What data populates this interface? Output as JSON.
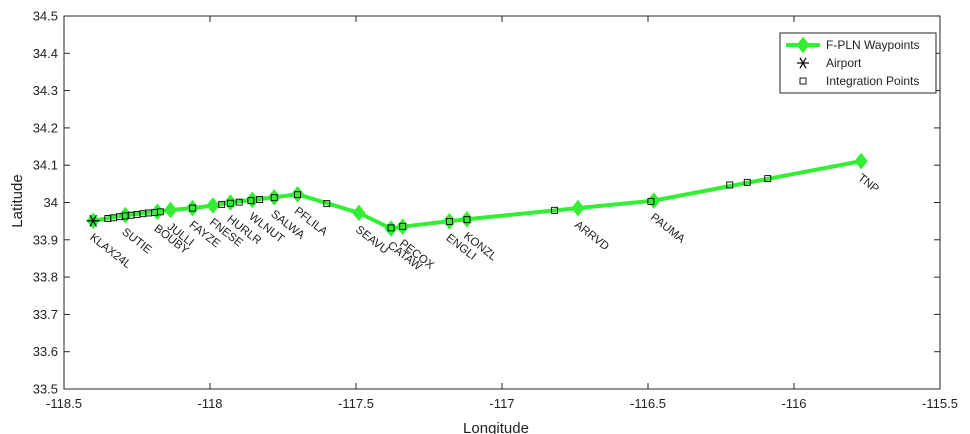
{
  "chart_data": {
    "type": "line",
    "xlabel": "Longitude",
    "ylabel": "Latitude",
    "xlim": [
      -118.5,
      -115.5
    ],
    "ylim": [
      33.5,
      34.5
    ],
    "xticks": [
      -118.5,
      -118,
      -117.5,
      -117,
      -116.5,
      -116,
      -115.5
    ],
    "xtick_labels": [
      "-118.5",
      "-118",
      "-117.5",
      "-117",
      "-116.5",
      "-116",
      "-115.5"
    ],
    "yticks": [
      33.5,
      33.6,
      33.7,
      33.8,
      33.9,
      34,
      34.1,
      34.2,
      34.3,
      34.4,
      34.5
    ],
    "ytick_labels": [
      "33.5",
      "33.6",
      "33.7",
      "33.8",
      "33.9",
      "34",
      "34.1",
      "34.2",
      "34.3",
      "34.4",
      "34.5"
    ],
    "grid": false,
    "legend_position": "top-right",
    "colors": {
      "route": "#33ee33",
      "marker_edge": "#000000",
      "axis": "#262626"
    },
    "series": [
      {
        "name": "F-PLN Waypoints",
        "marker": "diamond",
        "points": [
          {
            "label": "KLAX24L",
            "x": -118.4,
            "y": 33.951
          },
          {
            "label": "SUTIE",
            "x": -118.29,
            "y": 33.966
          },
          {
            "label": "BOUBY",
            "x": -118.18,
            "y": 33.975
          },
          {
            "label": "JULLI",
            "x": -118.135,
            "y": 33.98
          },
          {
            "label": "FAYZE",
            "x": -118.06,
            "y": 33.985
          },
          {
            "label": "FNESE",
            "x": -117.99,
            "y": 33.992
          },
          {
            "label": "HURLR",
            "x": -117.93,
            "y": 34.0
          },
          {
            "label": "WLNUT",
            "x": -117.855,
            "y": 34.007
          },
          {
            "label": "SALWA",
            "x": -117.78,
            "y": 34.014
          },
          {
            "label": "PFLILA",
            "x": -117.7,
            "y": 34.022
          },
          {
            "label": "SEAVU",
            "x": -117.49,
            "y": 33.972
          },
          {
            "label": "CATAW",
            "x": -117.38,
            "y": 33.93
          },
          {
            "label": "PECOX",
            "x": -117.34,
            "y": 33.935
          },
          {
            "label": "ENGLI",
            "x": -117.18,
            "y": 33.95
          },
          {
            "label": "KONZL",
            "x": -117.12,
            "y": 33.955
          },
          {
            "label": "ARRVD",
            "x": -116.74,
            "y": 33.985
          },
          {
            "label": "PAUMA",
            "x": -116.48,
            "y": 34.005
          },
          {
            "label": "TNP",
            "x": -115.77,
            "y": 34.111
          }
        ]
      },
      {
        "name": "Airport",
        "marker": "asterisk",
        "points": [
          {
            "x": -118.4,
            "y": 33.951
          }
        ]
      },
      {
        "name": "Integration Points",
        "marker": "square",
        "points": [
          {
            "x": -118.35,
            "y": 33.957
          },
          {
            "x": -118.33,
            "y": 33.959
          },
          {
            "x": -118.31,
            "y": 33.962
          },
          {
            "x": -118.29,
            "y": 33.964
          },
          {
            "x": -118.27,
            "y": 33.966
          },
          {
            "x": -118.25,
            "y": 33.968
          },
          {
            "x": -118.23,
            "y": 33.97
          },
          {
            "x": -118.21,
            "y": 33.972
          },
          {
            "x": -118.19,
            "y": 33.973
          },
          {
            "x": -118.17,
            "y": 33.975
          },
          {
            "x": -118.06,
            "y": 33.985
          },
          {
            "x": -117.96,
            "y": 33.995
          },
          {
            "x": -117.93,
            "y": 33.998
          },
          {
            "x": -117.9,
            "y": 34.001
          },
          {
            "x": -117.86,
            "y": 34.005
          },
          {
            "x": -117.83,
            "y": 34.008
          },
          {
            "x": -117.78,
            "y": 34.013
          },
          {
            "x": -117.7,
            "y": 34.021
          },
          {
            "x": -117.6,
            "y": 33.997
          },
          {
            "x": -117.38,
            "y": 33.932
          },
          {
            "x": -117.34,
            "y": 33.936
          },
          {
            "x": -117.18,
            "y": 33.949
          },
          {
            "x": -117.12,
            "y": 33.954
          },
          {
            "x": -116.82,
            "y": 33.979
          },
          {
            "x": -116.49,
            "y": 34.003
          },
          {
            "x": -116.22,
            "y": 34.047
          },
          {
            "x": -116.16,
            "y": 34.054
          },
          {
            "x": -116.09,
            "y": 34.064
          }
        ]
      }
    ]
  }
}
